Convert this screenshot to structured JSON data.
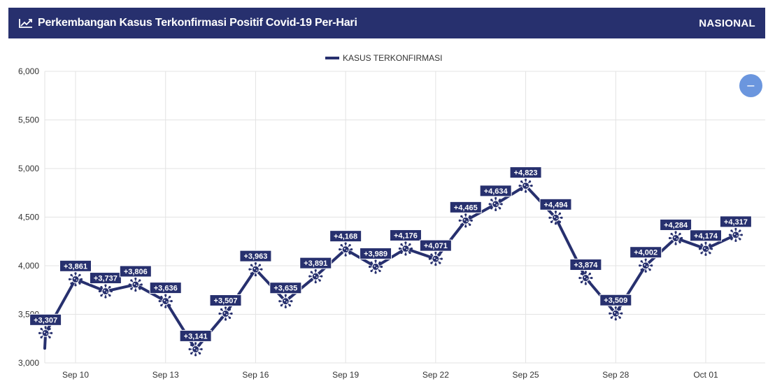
{
  "header": {
    "title": "Perkembangan Kasus Terkonfirmasi Positif Covid-19 Per-Hari",
    "region": "NASIONAL",
    "icon": "line-chart-icon"
  },
  "zoom_button": {
    "label": "−",
    "icon": "zoom-out-icon"
  },
  "colors": {
    "primary": "#27306e",
    "header_bg": "#27306e",
    "zoom_button": "#6b96de",
    "grid": "#e3e3e3"
  },
  "chart_data": {
    "type": "line",
    "title": "",
    "xlabel": "",
    "ylabel": "",
    "legend": {
      "position": "top",
      "entries": [
        "KASUS TERKONFIRMASI"
      ]
    },
    "grid": true,
    "ylim": [
      3000,
      6000
    ],
    "yticks": [
      "3,000",
      "3,500",
      "4,000",
      "4,500",
      "5,000",
      "5,500",
      "6,000"
    ],
    "xticks": [
      {
        "label": "Sep 10",
        "x": "2020-09-10"
      },
      {
        "label": "Sep 13",
        "x": "2020-09-13"
      },
      {
        "label": "Sep 16",
        "x": "2020-09-16"
      },
      {
        "label": "Sep 19",
        "x": "2020-09-19"
      },
      {
        "label": "Sep 22",
        "x": "2020-09-22"
      },
      {
        "label": "Sep 25",
        "x": "2020-09-25"
      },
      {
        "label": "Sep 28",
        "x": "2020-09-28"
      },
      {
        "label": "Oct 01",
        "x": "2020-10-01"
      }
    ],
    "xlim": [
      "2020-09-08",
      "2020-10-03"
    ],
    "x": [
      "2020-09-09",
      "2020-09-10",
      "2020-09-11",
      "2020-09-12",
      "2020-09-13",
      "2020-09-14",
      "2020-09-15",
      "2020-09-16",
      "2020-09-17",
      "2020-09-18",
      "2020-09-19",
      "2020-09-20",
      "2020-09-21",
      "2020-09-22",
      "2020-09-23",
      "2020-09-24",
      "2020-09-25",
      "2020-09-26",
      "2020-09-27",
      "2020-09-28",
      "2020-09-29",
      "2020-09-30",
      "2020-10-01",
      "2020-10-02"
    ],
    "series": [
      {
        "name": "KASUS TERKONFIRMASI",
        "color": "#27306e",
        "values": [
          3307,
          3861,
          3737,
          3806,
          3636,
          3141,
          3507,
          3963,
          3635,
          3891,
          4168,
          3989,
          4176,
          4071,
          4465,
          4634,
          4823,
          4494,
          3874,
          3509,
          4002,
          4284,
          4174,
          4317
        ],
        "labels": [
          "+3,307",
          "+3,861",
          "+3,737",
          "+3,806",
          "+3,636",
          "+3,141",
          "+3,507",
          "+3,963",
          "+3,635",
          "+3,891",
          "+4,168",
          "+3,989",
          "+4,176",
          "+4,071",
          "+4,465",
          "+4,634",
          "+4,823",
          "+4,494",
          "+3,874",
          "+3,509",
          "+4,002",
          "+4,284",
          "+4,174",
          "+4,317"
        ]
      }
    ],
    "lead_in_value": 3150
  }
}
